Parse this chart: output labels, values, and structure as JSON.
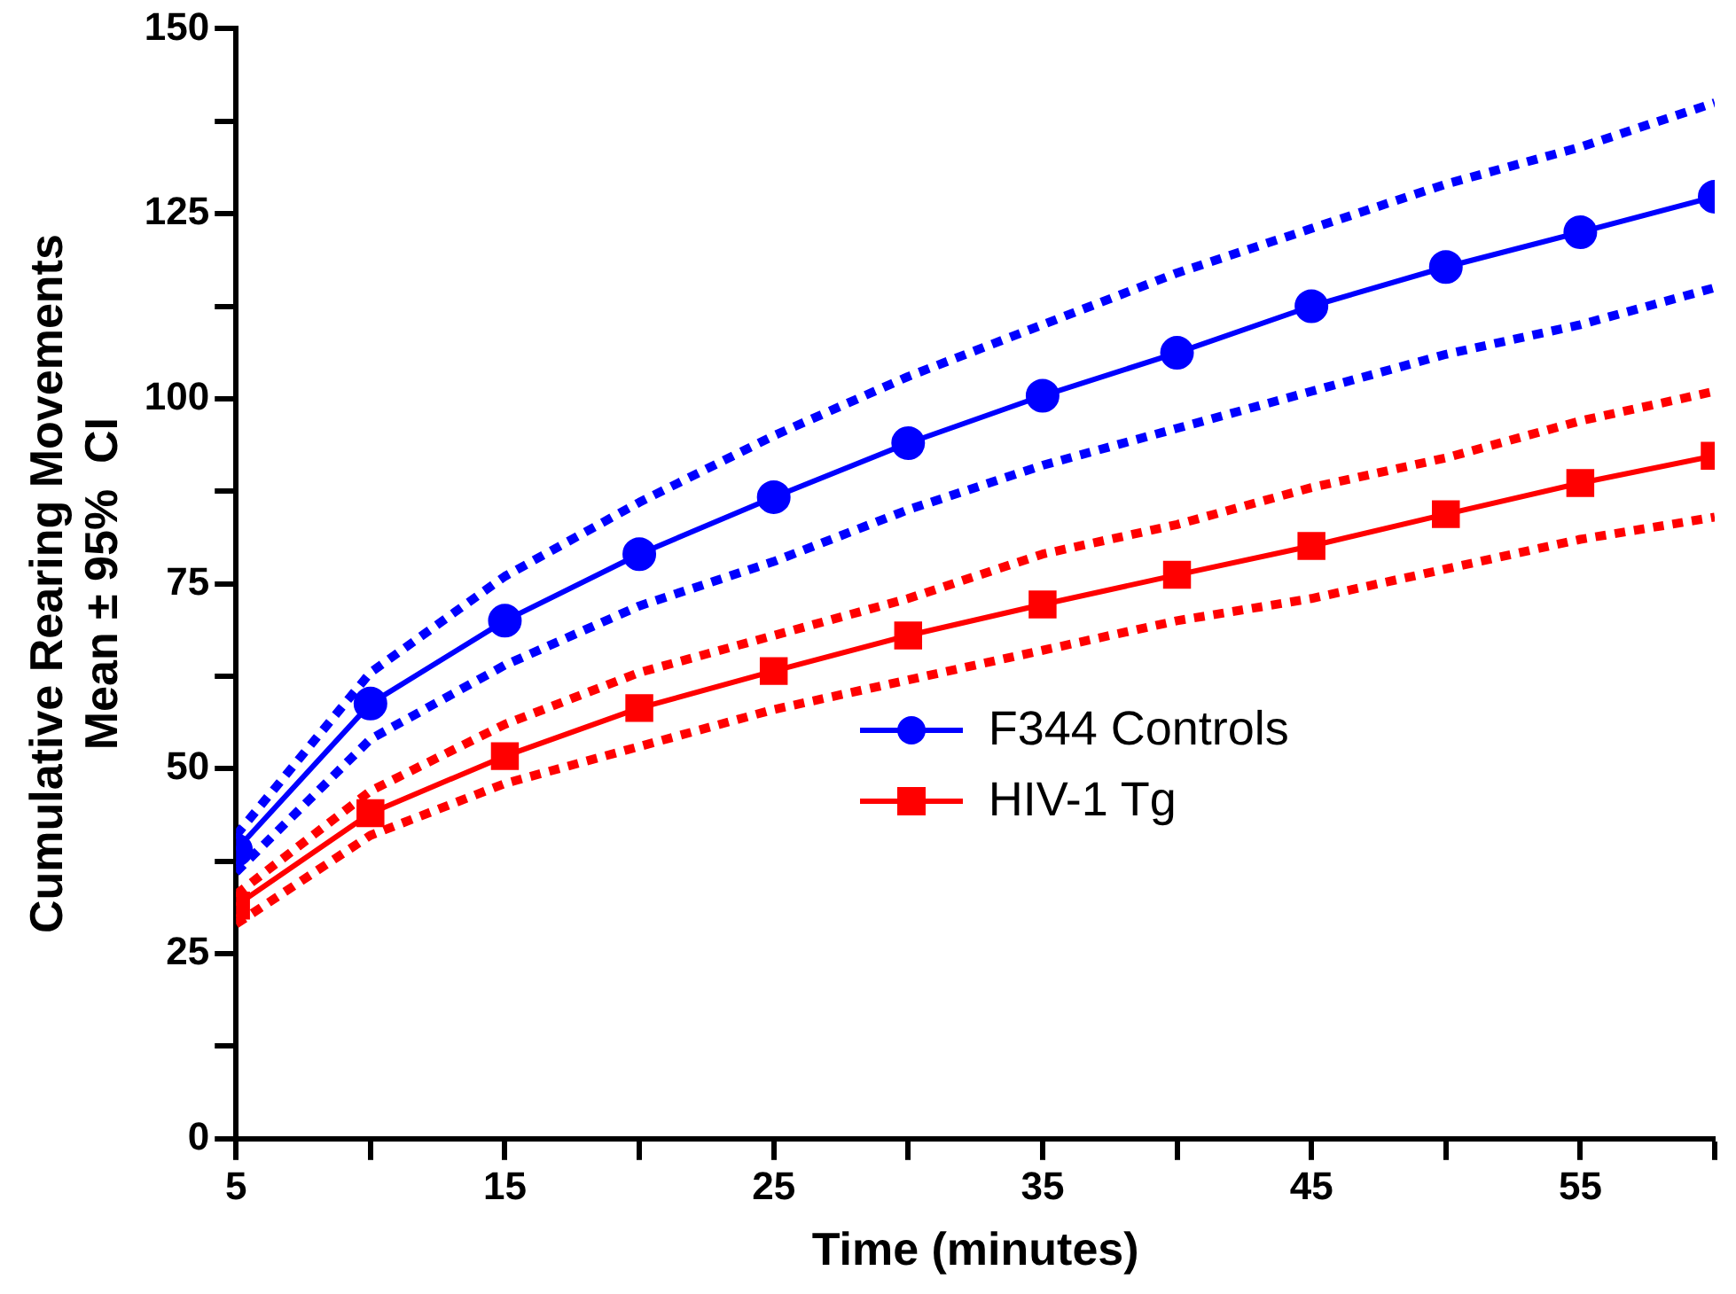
{
  "chart_data": {
    "type": "line",
    "xlabel": "Time (minutes)",
    "ylabel": "Cumulative Rearing Movements\nMean ± 95%  CI",
    "x": [
      5,
      10,
      15,
      20,
      25,
      30,
      35,
      40,
      45,
      50,
      55,
      60
    ],
    "xlim": [
      5,
      60
    ],
    "xticks": [
      5,
      {
        "value": 10,
        "label": null
      },
      15,
      {
        "value": 20,
        "label": null
      },
      25,
      {
        "value": 30,
        "label": null
      },
      35,
      {
        "value": 40,
        "label": null
      },
      45,
      {
        "value": 50,
        "label": null
      },
      55,
      {
        "value": 60,
        "label": null
      }
    ],
    "ylim": [
      0,
      150
    ],
    "yticks": [
      0,
      {
        "value": 12.5,
        "label": null
      },
      25,
      {
        "value": 37.5,
        "label": null
      },
      50,
      {
        "value": 62.5,
        "label": null
      },
      75,
      {
        "value": 87.5,
        "label": null
      },
      100,
      {
        "value": 112.5,
        "label": null
      },
      125,
      {
        "value": 137.5,
        "label": null
      },
      150
    ],
    "grid": false,
    "legend": "center",
    "line_style": "solid",
    "series": [
      {
        "color": "#0000ff",
        "marker": "none",
        "line_style": "dotted",
        "values": [
          41,
          63,
          76,
          86,
          95,
          103,
          110,
          117,
          123,
          129,
          134,
          140
        ]
      },
      {
        "color": "#0000ff",
        "marker": "none",
        "line_style": "dotted",
        "values": [
          36,
          54,
          64,
          72,
          78,
          85,
          91,
          96,
          101,
          106,
          110,
          115
        ]
      },
      {
        "color": "#ff0000",
        "marker": "none",
        "line_style": "dotted",
        "values": [
          33,
          47,
          56,
          63,
          68,
          73,
          79,
          83,
          88,
          92,
          97,
          101
        ]
      },
      {
        "color": "#ff0000",
        "marker": "none",
        "line_style": "dotted",
        "values": [
          29,
          41,
          48,
          53,
          58,
          62,
          66,
          70,
          73,
          77,
          81,
          84
        ]
      },
      {
        "name": "F344 Controls",
        "color": "#0000ff",
        "marker": "circle",
        "values": [
          39,
          58.8,
          70,
          79,
          86.7,
          94,
          100.4,
          106.2,
          112.5,
          117.8,
          122.5,
          127.3
        ]
      },
      {
        "name": "HIV-1 Tg",
        "color": "#ff0000",
        "marker": "square",
        "values": [
          31.5,
          44,
          51.7,
          58.2,
          63.2,
          68,
          72.2,
          76.2,
          80.1,
          84.4,
          88.6,
          92.3
        ]
      }
    ]
  }
}
